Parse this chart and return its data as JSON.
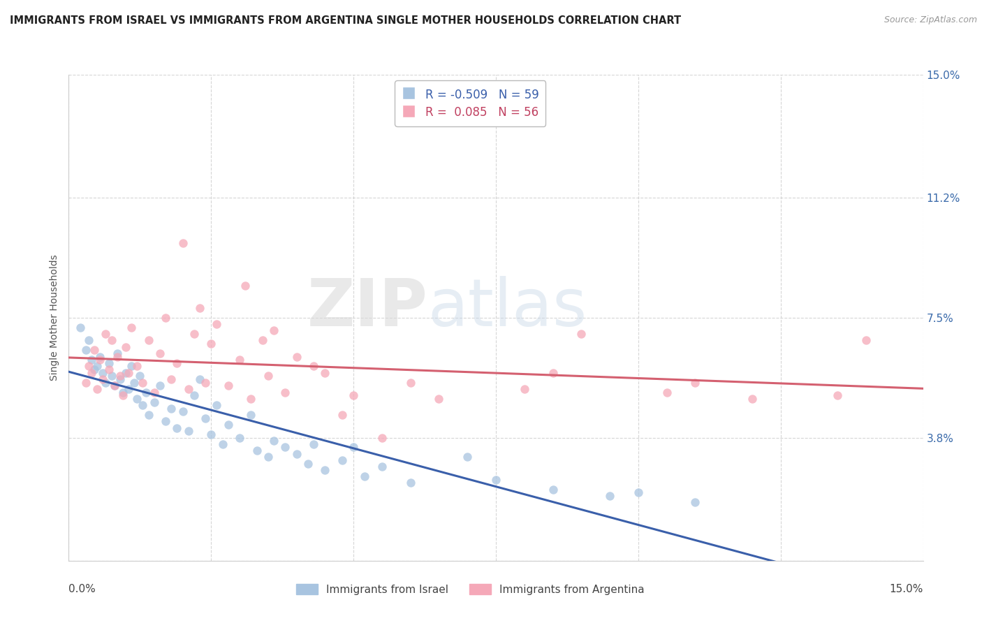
{
  "title": "IMMIGRANTS FROM ISRAEL VS IMMIGRANTS FROM ARGENTINA SINGLE MOTHER HOUSEHOLDS CORRELATION CHART",
  "source": "Source: ZipAtlas.com",
  "ylabel": "Single Mother Households",
  "xlim": [
    0.0,
    15.0
  ],
  "ylim": [
    0.0,
    15.0
  ],
  "ytick_vals": [
    0.0,
    3.8,
    7.5,
    11.2,
    15.0
  ],
  "right_ytick_labels": [
    "15.0%",
    "11.2%",
    "7.5%",
    "3.8%",
    ""
  ],
  "legend_israel_r": "-0.509",
  "legend_israel_n": "59",
  "legend_argentina_r": "0.085",
  "legend_argentina_n": "56",
  "israel_color": "#a8c4e0",
  "argentina_color": "#f5a8b8",
  "israel_line_color": "#3a5faa",
  "argentina_line_color": "#d46070",
  "background_color": "#ffffff",
  "watermark_zip": "ZIP",
  "watermark_atlas": "atlas",
  "israel_scatter": [
    [
      0.2,
      7.2
    ],
    [
      0.3,
      6.5
    ],
    [
      0.35,
      6.8
    ],
    [
      0.4,
      6.2
    ],
    [
      0.45,
      5.9
    ],
    [
      0.5,
      6.0
    ],
    [
      0.55,
      6.3
    ],
    [
      0.6,
      5.8
    ],
    [
      0.65,
      5.5
    ],
    [
      0.7,
      6.1
    ],
    [
      0.75,
      5.7
    ],
    [
      0.8,
      5.4
    ],
    [
      0.85,
      6.4
    ],
    [
      0.9,
      5.6
    ],
    [
      0.95,
      5.2
    ],
    [
      1.0,
      5.8
    ],
    [
      1.05,
      5.3
    ],
    [
      1.1,
      6.0
    ],
    [
      1.15,
      5.5
    ],
    [
      1.2,
      5.0
    ],
    [
      1.25,
      5.7
    ],
    [
      1.3,
      4.8
    ],
    [
      1.35,
      5.2
    ],
    [
      1.4,
      4.5
    ],
    [
      1.5,
      4.9
    ],
    [
      1.6,
      5.4
    ],
    [
      1.7,
      4.3
    ],
    [
      1.8,
      4.7
    ],
    [
      1.9,
      4.1
    ],
    [
      2.0,
      4.6
    ],
    [
      2.1,
      4.0
    ],
    [
      2.2,
      5.1
    ],
    [
      2.3,
      5.6
    ],
    [
      2.4,
      4.4
    ],
    [
      2.5,
      3.9
    ],
    [
      2.6,
      4.8
    ],
    [
      2.7,
      3.6
    ],
    [
      2.8,
      4.2
    ],
    [
      3.0,
      3.8
    ],
    [
      3.2,
      4.5
    ],
    [
      3.3,
      3.4
    ],
    [
      3.5,
      3.2
    ],
    [
      3.6,
      3.7
    ],
    [
      3.8,
      3.5
    ],
    [
      4.0,
      3.3
    ],
    [
      4.2,
      3.0
    ],
    [
      4.3,
      3.6
    ],
    [
      4.5,
      2.8
    ],
    [
      4.8,
      3.1
    ],
    [
      5.0,
      3.5
    ],
    [
      5.2,
      2.6
    ],
    [
      5.5,
      2.9
    ],
    [
      6.0,
      2.4
    ],
    [
      7.0,
      3.2
    ],
    [
      7.5,
      2.5
    ],
    [
      8.5,
      2.2
    ],
    [
      9.5,
      2.0
    ],
    [
      10.0,
      2.1
    ],
    [
      11.0,
      1.8
    ]
  ],
  "argentina_scatter": [
    [
      0.3,
      5.5
    ],
    [
      0.35,
      6.0
    ],
    [
      0.4,
      5.8
    ],
    [
      0.45,
      6.5
    ],
    [
      0.5,
      5.3
    ],
    [
      0.55,
      6.2
    ],
    [
      0.6,
      5.6
    ],
    [
      0.65,
      7.0
    ],
    [
      0.7,
      5.9
    ],
    [
      0.75,
      6.8
    ],
    [
      0.8,
      5.4
    ],
    [
      0.85,
      6.3
    ],
    [
      0.9,
      5.7
    ],
    [
      0.95,
      5.1
    ],
    [
      1.0,
      6.6
    ],
    [
      1.05,
      5.8
    ],
    [
      1.1,
      7.2
    ],
    [
      1.2,
      6.0
    ],
    [
      1.3,
      5.5
    ],
    [
      1.4,
      6.8
    ],
    [
      1.5,
      5.2
    ],
    [
      1.6,
      6.4
    ],
    [
      1.7,
      7.5
    ],
    [
      1.8,
      5.6
    ],
    [
      1.9,
      6.1
    ],
    [
      2.0,
      9.8
    ],
    [
      2.1,
      5.3
    ],
    [
      2.2,
      7.0
    ],
    [
      2.3,
      7.8
    ],
    [
      2.4,
      5.5
    ],
    [
      2.5,
      6.7
    ],
    [
      2.6,
      7.3
    ],
    [
      2.8,
      5.4
    ],
    [
      3.0,
      6.2
    ],
    [
      3.1,
      8.5
    ],
    [
      3.2,
      5.0
    ],
    [
      3.4,
      6.8
    ],
    [
      3.5,
      5.7
    ],
    [
      3.6,
      7.1
    ],
    [
      3.8,
      5.2
    ],
    [
      4.0,
      6.3
    ],
    [
      4.3,
      6.0
    ],
    [
      4.5,
      5.8
    ],
    [
      4.8,
      4.5
    ],
    [
      5.0,
      5.1
    ],
    [
      5.5,
      3.8
    ],
    [
      6.0,
      5.5
    ],
    [
      6.5,
      5.0
    ],
    [
      8.0,
      5.3
    ],
    [
      8.5,
      5.8
    ],
    [
      9.0,
      7.0
    ],
    [
      10.5,
      5.2
    ],
    [
      11.0,
      5.5
    ],
    [
      12.0,
      5.0
    ],
    [
      13.5,
      5.1
    ],
    [
      14.0,
      6.8
    ]
  ]
}
